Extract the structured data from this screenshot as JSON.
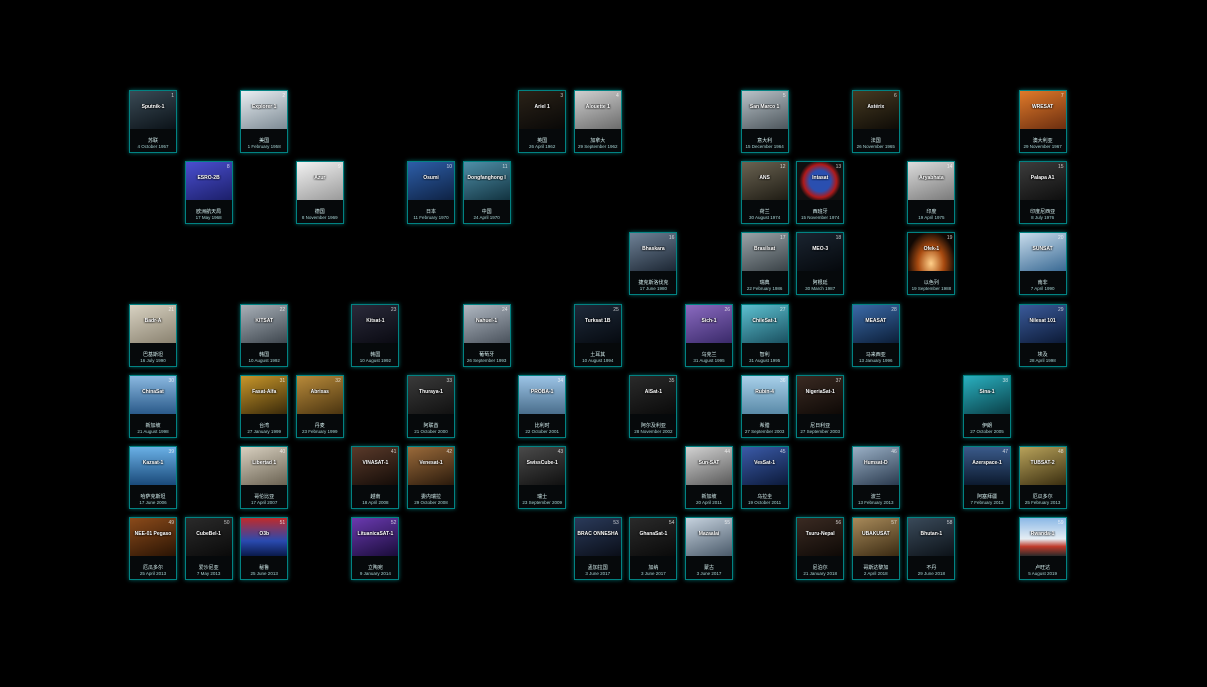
{
  "cards": [
    {
      "sym": "Sputnik-1",
      "num": "1",
      "name": "苏联",
      "date": "4 October 1957",
      "col": 0,
      "row": 0,
      "bg": "linear-gradient(160deg,#3a4a55,#0b1218)"
    },
    {
      "sym": "Explorer 1",
      "num": "2",
      "name": "美国",
      "date": "1 February 1958",
      "col": 2,
      "row": 0,
      "bg": "linear-gradient(160deg,#e8eef2,#7d8a94)"
    },
    {
      "sym": "Ariel 1",
      "num": "3",
      "name": "英国",
      "date": "26 April 1962",
      "col": 7,
      "row": 0,
      "bg": "linear-gradient(160deg,#2a2218,#090807)"
    },
    {
      "sym": "Alouette 1",
      "num": "4",
      "name": "加拿大",
      "date": "29 September 1962",
      "col": 8,
      "row": 0,
      "bg": "linear-gradient(160deg,#cfcfcf,#6c6c6c)"
    },
    {
      "sym": "San Marco 1",
      "num": "5",
      "name": "意大利",
      "date": "15 December 1964",
      "col": 11,
      "row": 0,
      "bg": "linear-gradient(160deg,#b9c2c8,#4d565c)"
    },
    {
      "sym": "Astérix",
      "num": "6",
      "name": "法国",
      "date": "26 November 1965",
      "col": 13,
      "row": 0,
      "bg": "linear-gradient(160deg,#463a22,#0e0b06)"
    },
    {
      "sym": "WRESAT",
      "num": "7",
      "name": "澳大利亚",
      "date": "29 November 1967",
      "col": 16,
      "row": 0,
      "bg": "linear-gradient(160deg,#e07a2a,#6b2e10)"
    },
    {
      "sym": "ESRO-2B",
      "num": "8",
      "name": "欧洲航天局",
      "date": "17 May 1968",
      "col": 1,
      "row": 1,
      "bg": "linear-gradient(160deg,#4a4fd0,#1c1f6a)"
    },
    {
      "sym": "Azur",
      "num": "9",
      "name": "德国",
      "date": "8 November 1969",
      "col": 3,
      "row": 1,
      "bg": "linear-gradient(160deg,#f2f2f2,#9a9a9a)"
    },
    {
      "sym": "Ōsumi",
      "num": "10",
      "name": "日本",
      "date": "11 February 1970",
      "col": 5,
      "row": 1,
      "bg": "linear-gradient(160deg,#2d5ea8,#0e2244)"
    },
    {
      "sym": "Dongfanghong I",
      "num": "11",
      "name": "中国",
      "date": "24 April 1970",
      "col": 6,
      "row": 1,
      "bg": "linear-gradient(160deg,#4f8fa8,#123340)"
    },
    {
      "sym": "ANS",
      "num": "12",
      "name": "荷兰",
      "date": "30 August 1974",
      "col": 11,
      "row": 1,
      "bg": "linear-gradient(160deg,#6a6352,#1f1c14)"
    },
    {
      "sym": "Intasat",
      "num": "13",
      "name": "西班牙",
      "date": "15 November 1974",
      "col": 12,
      "row": 1,
      "bg": "radial-gradient(circle,#2a4fb0 35%,#b01a1a 55%,#101010 70%)"
    },
    {
      "sym": "Aryabhata",
      "num": "14",
      "name": "印度",
      "date": "19 April 1975",
      "col": 14,
      "row": 1,
      "bg": "linear-gradient(160deg,#dcdcdc,#7a7a7a)"
    },
    {
      "sym": "Palapa A1",
      "num": "15",
      "name": "印度尼西亚",
      "date": "8 July 1976",
      "col": 16,
      "row": 1,
      "bg": "linear-gradient(160deg,#3c3c3c,#0e0e0e)"
    },
    {
      "sym": "Bhaskara",
      "num": "16",
      "name": "捷克斯洛伐克",
      "date": "17 June 1980",
      "col": 9,
      "row": 2,
      "bg": "linear-gradient(160deg,#6e8196,#1c2633)"
    },
    {
      "sym": "Brasilsat",
      "num": "17",
      "name": "瑞典",
      "date": "22 February 1986",
      "col": 11,
      "row": 2,
      "bg": "linear-gradient(160deg,#9aa3a8,#3a4247)"
    },
    {
      "sym": "MEO-3",
      "num": "18",
      "name": "阿根廷",
      "date": "30 March 1987",
      "col": 12,
      "row": 2,
      "bg": "linear-gradient(160deg,#1a2430,#05080c)"
    },
    {
      "sym": "Ofek-1",
      "num": "19",
      "name": "以色列",
      "date": "19 September 1988",
      "col": 14,
      "row": 2,
      "bg": "radial-gradient(ellipse at 50% 80%,#ffd08a,#a84a10 40%,#100804 75%)"
    },
    {
      "sym": "SUNSAT",
      "num": "20",
      "name": "南非",
      "date": "7 April 1990",
      "col": 16,
      "row": 2,
      "bg": "linear-gradient(160deg,#c8dcec,#3a6a94)"
    },
    {
      "sym": "Badr-A",
      "num": "21",
      "name": "巴基斯坦",
      "date": "16 July 1990",
      "col": 0,
      "row": 3,
      "bg": "linear-gradient(160deg,#d8d2c2,#8a8270)"
    },
    {
      "sym": "KITSAT",
      "num": "22",
      "name": "韩国",
      "date": "10 August 1992",
      "col": 2,
      "row": 3,
      "bg": "linear-gradient(160deg,#a8b0b8,#3e464e)"
    },
    {
      "sym": "Kitsat-1",
      "num": "23",
      "name": "韩国",
      "date": "10 August 1992",
      "col": 4,
      "row": 3,
      "bg": "linear-gradient(160deg,#2a2a3a,#0a0a12)"
    },
    {
      "sym": "Nahuel-1",
      "num": "24",
      "name": "葡萄牙",
      "date": "26 September 1993",
      "col": 6,
      "row": 3,
      "bg": "linear-gradient(160deg,#b0b8c2,#4a525c)"
    },
    {
      "sym": "Turksat 1B",
      "num": "25",
      "name": "土耳其",
      "date": "10 August 1994",
      "col": 8,
      "row": 3,
      "bg": "linear-gradient(160deg,#1e2a3a,#060a10)"
    },
    {
      "sym": "Sich-1",
      "num": "26",
      "name": "乌克兰",
      "date": "31 August 1995",
      "col": 10,
      "row": 3,
      "bg": "linear-gradient(160deg,#8a6ac0,#3a2a6a)"
    },
    {
      "sym": "ChileSat-1",
      "num": "27",
      "name": "智利",
      "date": "31 August 1995",
      "col": 11,
      "row": 3,
      "bg": "linear-gradient(160deg,#5cc0d0,#1a5060)"
    },
    {
      "sym": "MEASAT",
      "num": "28",
      "name": "马来西亚",
      "date": "13 January 1996",
      "col": 13,
      "row": 3,
      "bg": "linear-gradient(160deg,#3a6aa8,#0c1e38)"
    },
    {
      "sym": "Nilesat 101",
      "num": "29",
      "name": "埃及",
      "date": "28 April 1998",
      "col": 16,
      "row": 3,
      "bg": "linear-gradient(160deg,#3a5a9a,#0c1a36)"
    },
    {
      "sym": "ChinaSat",
      "num": "30",
      "name": "新加坡",
      "date": "21 August 1998",
      "col": 0,
      "row": 4,
      "bg": "linear-gradient(180deg,#8ab8e0,#2a5a8a)"
    },
    {
      "sym": "Fasat-Alfa",
      "num": "31",
      "name": "台湾",
      "date": "27 January 1999",
      "col": 2,
      "row": 4,
      "bg": "linear-gradient(160deg,#c8962a,#3a2a0a)"
    },
    {
      "sym": "Abrixas",
      "num": "32",
      "name": "丹麦",
      "date": "23 February 1999",
      "col": 3,
      "row": 4,
      "bg": "linear-gradient(160deg,#b88a3a,#4a3410)"
    },
    {
      "sym": "Thuraya-1",
      "num": "33",
      "name": "阿联酋",
      "date": "21 October 2000",
      "col": 5,
      "row": 4,
      "bg": "linear-gradient(160deg,#3a3a3a,#111)"
    },
    {
      "sym": "PROBA-1",
      "num": "34",
      "name": "比利时",
      "date": "22 October 2001",
      "col": 7,
      "row": 4,
      "bg": "linear-gradient(180deg,#9cc4e6,#4a6e8c)"
    },
    {
      "sym": "AlSat-1",
      "num": "35",
      "name": "阿尔及利亚",
      "date": "28 November 2002",
      "col": 9,
      "row": 4,
      "bg": "linear-gradient(160deg,#2a2a2a,#0a0a0a)"
    },
    {
      "sym": "Rubin-4",
      "num": "36",
      "name": "希腊",
      "date": "27 September 2003",
      "col": 11,
      "row": 4,
      "bg": "linear-gradient(180deg,#a8d0ea,#5a8aa8)"
    },
    {
      "sym": "NigeriaSat-1",
      "num": "37",
      "name": "尼日利亚",
      "date": "27 September 2003",
      "col": 12,
      "row": 4,
      "bg": "linear-gradient(160deg,#3a2a22,#0e0906)"
    },
    {
      "sym": "Sina-1",
      "num": "38",
      "name": "伊朗",
      "date": "27 October 2005",
      "col": 15,
      "row": 4,
      "bg": "linear-gradient(160deg,#2ab0c0,#0a4048)"
    },
    {
      "sym": "Kazsat-1",
      "num": "39",
      "name": "哈萨克斯坦",
      "date": "17 June 2006",
      "col": 0,
      "row": 5,
      "bg": "linear-gradient(180deg,#6ab0e6,#1a4a7a)"
    },
    {
      "sym": "Libertad 1",
      "num": "40",
      "name": "哥伦比亚",
      "date": "17 April 2007",
      "col": 2,
      "row": 5,
      "bg": "linear-gradient(160deg,#d8d0c0,#6a6252)"
    },
    {
      "sym": "VINASAT-1",
      "num": "41",
      "name": "越南",
      "date": "18 April 2008",
      "col": 4,
      "row": 5,
      "bg": "linear-gradient(160deg,#5a3a2a,#140c08)"
    },
    {
      "sym": "Venesat-1",
      "num": "42",
      "name": "委内瑞拉",
      "date": "29 October 2008",
      "col": 5,
      "row": 5,
      "bg": "linear-gradient(160deg,#9a6a3a,#2a1a0c)"
    },
    {
      "sym": "SwissCube-1",
      "num": "43",
      "name": "瑞士",
      "date": "23 September 2009",
      "col": 7,
      "row": 5,
      "bg": "linear-gradient(160deg,#4a4a4a,#101010)"
    },
    {
      "sym": "Sun-SAT",
      "num": "44",
      "name": "新加坡",
      "date": "20 April 2011",
      "col": 10,
      "row": 5,
      "bg": "linear-gradient(160deg,#d2d2d2,#5a5a5a)"
    },
    {
      "sym": "VesSat-1",
      "num": "45",
      "name": "乌拉圭",
      "date": "19 October 2011",
      "col": 11,
      "row": 5,
      "bg": "linear-gradient(160deg,#3a5aa8,#0c1a3a)"
    },
    {
      "sym": "Humsat-D",
      "num": "46",
      "name": "波兰",
      "date": "13 February 2013",
      "col": 13,
      "row": 5,
      "bg": "linear-gradient(160deg,#9ab0c6,#2a3a4e)"
    },
    {
      "sym": "Azerspace-1",
      "num": "47",
      "name": "阿塞拜疆",
      "date": "7 February 2013",
      "col": 15,
      "row": 5,
      "bg": "linear-gradient(180deg,#3a5a8a,#0c1a2e)"
    },
    {
      "sym": "TUBSAT-2",
      "num": "48",
      "name": "厄瓜多尔",
      "date": "25 February 2013",
      "col": 16,
      "row": 5,
      "bg": "linear-gradient(160deg,#b8a25a,#3a2e10)"
    },
    {
      "sym": "NEE-01 Pegaso",
      "num": "49",
      "name": "厄瓜多尔",
      "date": "25 April 2013",
      "col": 0,
      "row": 6,
      "bg": "linear-gradient(160deg,#8a4a1a,#2a1404)"
    },
    {
      "sym": "CubeBel-1",
      "num": "50",
      "name": "爱沙尼亚",
      "date": "7 May 2013",
      "col": 1,
      "row": 6,
      "bg": "linear-gradient(160deg,#2a2a2a,#0a0a0a)"
    },
    {
      "sym": "O3b",
      "num": "51",
      "name": "秘鲁",
      "date": "25 June 2013",
      "col": 2,
      "row": 6,
      "bg": "linear-gradient(180deg,#c02a2a,#2a4ab0 60%,#0a1a4a)"
    },
    {
      "sym": "LituanicaSAT-1",
      "num": "52",
      "name": "立陶宛",
      "date": "9 January 2014",
      "col": 4,
      "row": 6,
      "bg": "linear-gradient(160deg,#6a3ab0,#1a0c3a)"
    },
    {
      "sym": "BRAC ONNESHA",
      "num": "53",
      "name": "孟加拉国",
      "date": "3 June 2017",
      "col": 8,
      "row": 6,
      "bg": "linear-gradient(160deg,#2a3a5a,#0a0e18)"
    },
    {
      "sym": "GhanaSat-1",
      "num": "54",
      "name": "加纳",
      "date": "3 June 2017",
      "col": 9,
      "row": 6,
      "bg": "linear-gradient(160deg,#2a2a2a,#0a0a0a)"
    },
    {
      "sym": "Mazaalai",
      "num": "55",
      "name": "蒙古",
      "date": "3 June 2017",
      "col": 10,
      "row": 6,
      "bg": "linear-gradient(160deg,#c6d2de,#4a5a6a)"
    },
    {
      "sym": "Tsuru-Nepal",
      "num": "56",
      "name": "尼泊尔",
      "date": "21 January 2018",
      "col": 12,
      "row": 6,
      "bg": "linear-gradient(160deg,#3a2a22,#0e0906)"
    },
    {
      "sym": "UBAKUSAT",
      "num": "57",
      "name": "哥斯达黎加",
      "date": "2 April 2018",
      "col": 13,
      "row": 6,
      "bg": "linear-gradient(160deg,#a88a5a,#3a2a12)"
    },
    {
      "sym": "Bhutan-1",
      "num": "58",
      "name": "不丹",
      "date": "29 June 2018",
      "col": 14,
      "row": 6,
      "bg": "linear-gradient(160deg,#3a4a5a,#0c1218)"
    },
    {
      "sym": "Rwanda-1",
      "num": "59",
      "name": "卢旺达",
      "date": "5 August 2019",
      "col": 16,
      "row": 6,
      "bg": "linear-gradient(180deg,#8ab8e6,#e6eef4 55%,#c03a2a 75%,#2a2a2a)"
    }
  ]
}
